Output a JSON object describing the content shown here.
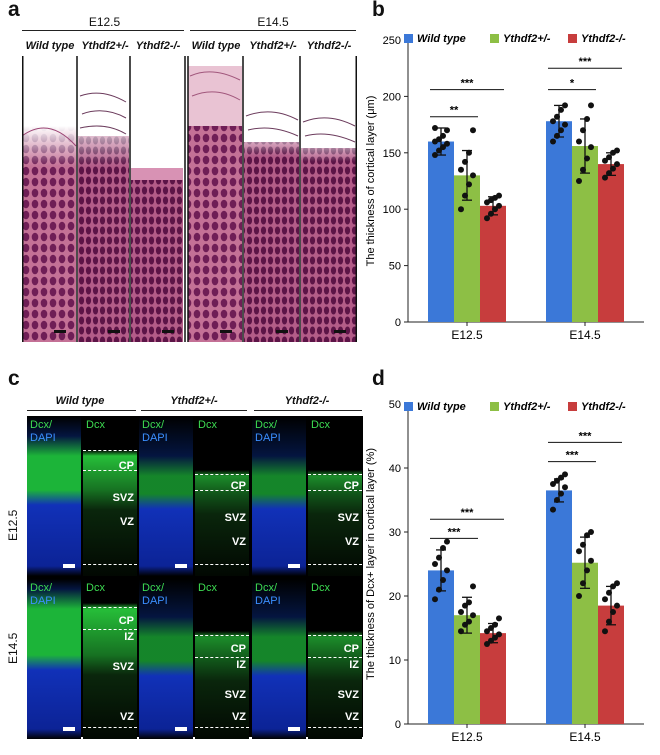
{
  "panels": {
    "a": {
      "letter": "a",
      "groups": [
        "E12.5",
        "E14.5"
      ],
      "columns": [
        "Wild type",
        "Ythdf2+/-",
        "Ythdf2-/-",
        "Wild type",
        "Ythdf2+/-",
        "Ythdf2-/-"
      ]
    },
    "b": {
      "letter": "b"
    },
    "c": {
      "letter": "c",
      "genotypes": [
        "Wild type",
        "Ythdf2+/-",
        "Ythdf2-/-"
      ],
      "stages": [
        "E12.5",
        "E14.5"
      ],
      "stain_merge_1": "Dcx/",
      "stain_merge_2": "DAPI",
      "stain_single": "Dcx",
      "zones_e125": [
        "CP",
        "SVZ",
        "VZ"
      ],
      "zones_e145": [
        "CP",
        "IZ",
        "SVZ",
        "VZ"
      ]
    },
    "d": {
      "letter": "d"
    }
  },
  "chart_data": [
    {
      "type": "bar",
      "ylabel": "The thickness of cortical layer (μm)",
      "ylim": [
        0,
        250
      ],
      "yticks": [
        0,
        50,
        100,
        150,
        200,
        250
      ],
      "categories": [
        "E12.5",
        "E14.5"
      ],
      "series": [
        {
          "name": "Wild type",
          "color": "#3b78d8",
          "values": [
            160,
            178
          ],
          "errors": [
            12,
            14
          ],
          "points": [
            [
              148,
              152,
              155,
              158,
              160,
              162,
              165,
              170,
              172
            ],
            [
              160,
              165,
              170,
              175,
              178,
              182,
              188,
              192
            ]
          ]
        },
        {
          "name": "Ythdf2+/-",
          "color": "#8dbf45",
          "values": [
            130,
            156
          ],
          "errors": [
            22,
            24
          ],
          "points": [
            [
              100,
              112,
              122,
              130,
              135,
              142,
              150,
              170
            ],
            [
              125,
              135,
              145,
              155,
              160,
              170,
              180,
              192
            ]
          ]
        },
        {
          "name": "Ythdf2-/-",
          "color": "#c73d3d",
          "values": [
            103,
            140
          ],
          "errors": [
            8,
            10
          ],
          "points": [
            [
              92,
              96,
              100,
              103,
              106,
              108,
              110,
              112
            ],
            [
              128,
              132,
              136,
              140,
              143,
              146,
              150,
              152
            ]
          ]
        }
      ],
      "significance": [
        {
          "category": "E12.5",
          "pair": [
            "Wild type",
            "Ythdf2+/-"
          ],
          "label": "**",
          "y": 182
        },
        {
          "category": "E12.5",
          "pair": [
            "Wild type",
            "Ythdf2-/-"
          ],
          "label": "***",
          "y": 206
        },
        {
          "category": "E14.5",
          "pair": [
            "Wild type",
            "Ythdf2+/-"
          ],
          "label": "*",
          "y": 206
        },
        {
          "category": "E14.5",
          "pair": [
            "Wild type",
            "Ythdf2-/-"
          ],
          "label": "***",
          "y": 225
        }
      ],
      "legend": "top"
    },
    {
      "type": "bar",
      "ylabel": "The thickness of Dcx+ layer in cortical layer (%)",
      "ylim": [
        0,
        50
      ],
      "yticks": [
        0,
        10,
        20,
        30,
        40,
        50
      ],
      "categories": [
        "E12.5",
        "E14.5"
      ],
      "series": [
        {
          "name": "Wild type",
          "color": "#3b78d8",
          "values": [
            24,
            36.5
          ],
          "errors": [
            3.2,
            1.8
          ],
          "points": [
            [
              19.5,
              21,
              22.5,
              24,
              25,
              26,
              27.5,
              28.5
            ],
            [
              33.5,
              35,
              36,
              37,
              37.5,
              38,
              38.5,
              39
            ]
          ]
        },
        {
          "name": "Ythdf2+/-",
          "color": "#8dbf45",
          "values": [
            17,
            25.2
          ],
          "errors": [
            2.8,
            4
          ],
          "points": [
            [
              14.5,
              15.5,
              16,
              17,
              17.5,
              18.5,
              19,
              21.5
            ],
            [
              20,
              22,
              24,
              25.5,
              27,
              28,
              29.5,
              30
            ]
          ]
        },
        {
          "name": "Ythdf2-/-",
          "color": "#c73d3d",
          "values": [
            14.2,
            18.5
          ],
          "errors": [
            1.5,
            3
          ],
          "points": [
            [
              12.5,
              13,
              13.5,
              14,
              14.5,
              15,
              15.5,
              16.5
            ],
            [
              14.5,
              16,
              17.5,
              18.5,
              19.5,
              20.5,
              21.5,
              22
            ]
          ]
        }
      ],
      "significance": [
        {
          "category": "E12.5",
          "pair": [
            "Wild type",
            "Ythdf2+/-"
          ],
          "label": "***",
          "y": 29
        },
        {
          "category": "E12.5",
          "pair": [
            "Wild type",
            "Ythdf2-/-"
          ],
          "label": "***",
          "y": 32
        },
        {
          "category": "E14.5",
          "pair": [
            "Wild type",
            "Ythdf2+/-"
          ],
          "label": "***",
          "y": 41
        },
        {
          "category": "E14.5",
          "pair": [
            "Wild type",
            "Ythdf2-/-"
          ],
          "label": "***",
          "y": 44
        }
      ],
      "legend": "top"
    }
  ]
}
